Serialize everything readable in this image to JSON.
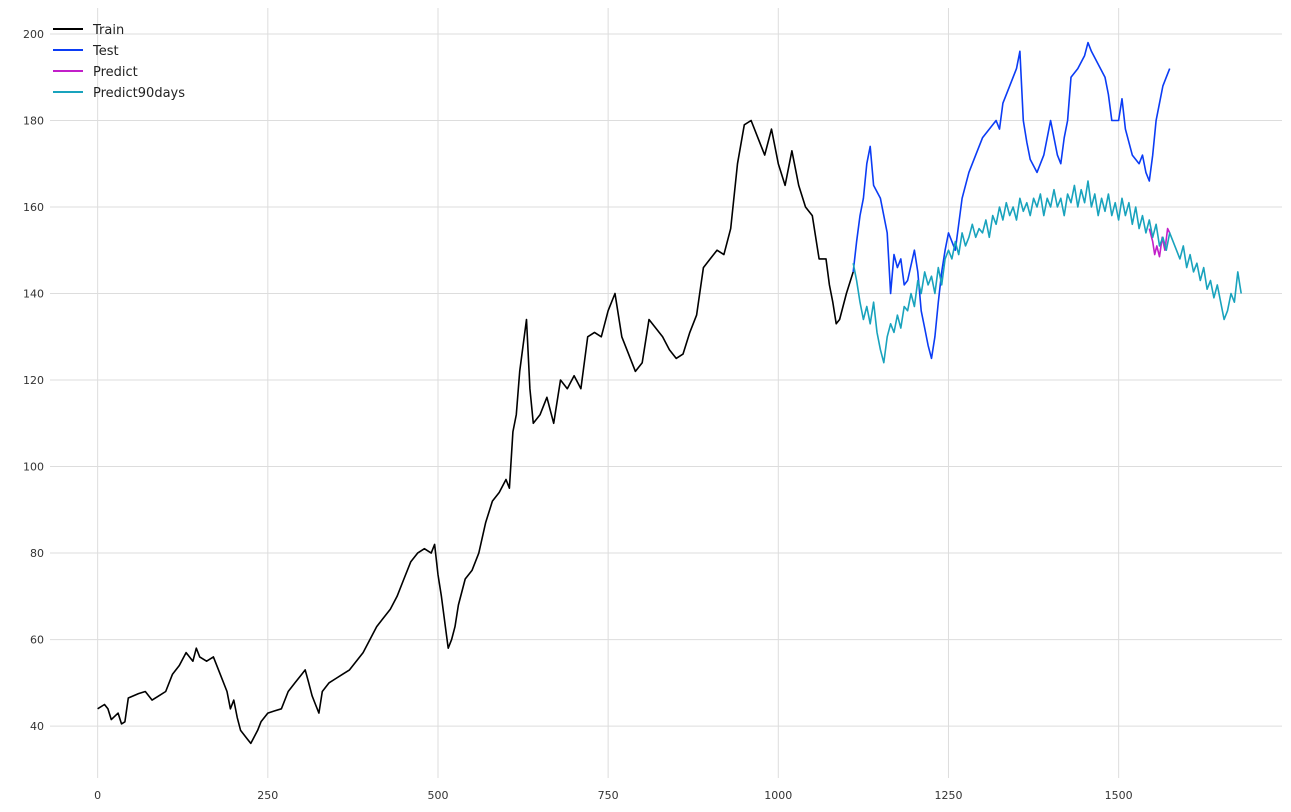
{
  "chart_data": {
    "type": "line",
    "xlim": [
      -70,
      1740
    ],
    "ylim": [
      28,
      206
    ],
    "x_ticks": [
      0,
      250,
      500,
      750,
      1000,
      1250,
      1500
    ],
    "y_ticks": [
      40,
      60,
      80,
      100,
      120,
      140,
      160,
      180,
      200
    ],
    "grid": true,
    "legend_position": "top-left",
    "series": [
      {
        "name": "Train",
        "color": "#000000",
        "points": [
          [
            0,
            44
          ],
          [
            10,
            45
          ],
          [
            15,
            44
          ],
          [
            20,
            41.5
          ],
          [
            30,
            43
          ],
          [
            35,
            40.5
          ],
          [
            40,
            41
          ],
          [
            45,
            46.5
          ],
          [
            60,
            47.5
          ],
          [
            70,
            48
          ],
          [
            80,
            46
          ],
          [
            90,
            47
          ],
          [
            100,
            48
          ],
          [
            110,
            52
          ],
          [
            120,
            54
          ],
          [
            130,
            57
          ],
          [
            140,
            55
          ],
          [
            145,
            58
          ],
          [
            150,
            56
          ],
          [
            160,
            55
          ],
          [
            170,
            56
          ],
          [
            180,
            52
          ],
          [
            190,
            48
          ],
          [
            195,
            44
          ],
          [
            200,
            46
          ],
          [
            205,
            42
          ],
          [
            210,
            39
          ],
          [
            215,
            38
          ],
          [
            220,
            37
          ],
          [
            225,
            36
          ],
          [
            235,
            39
          ],
          [
            240,
            41
          ],
          [
            250,
            43
          ],
          [
            260,
            43.5
          ],
          [
            270,
            44
          ],
          [
            280,
            48
          ],
          [
            290,
            50
          ],
          [
            300,
            52
          ],
          [
            305,
            53
          ],
          [
            310,
            50
          ],
          [
            315,
            47
          ],
          [
            320,
            45
          ],
          [
            325,
            43
          ],
          [
            330,
            48
          ],
          [
            340,
            50
          ],
          [
            350,
            51
          ],
          [
            360,
            52
          ],
          [
            370,
            53
          ],
          [
            380,
            55
          ],
          [
            390,
            57
          ],
          [
            400,
            60
          ],
          [
            410,
            63
          ],
          [
            420,
            65
          ],
          [
            430,
            67
          ],
          [
            440,
            70
          ],
          [
            450,
            74
          ],
          [
            460,
            78
          ],
          [
            470,
            80
          ],
          [
            480,
            81
          ],
          [
            490,
            80
          ],
          [
            495,
            82
          ],
          [
            500,
            75
          ],
          [
            505,
            70
          ],
          [
            510,
            64
          ],
          [
            515,
            58
          ],
          [
            520,
            60
          ],
          [
            525,
            63
          ],
          [
            530,
            68
          ],
          [
            540,
            74
          ],
          [
            550,
            76
          ],
          [
            560,
            80
          ],
          [
            570,
            87
          ],
          [
            580,
            92
          ],
          [
            590,
            94
          ],
          [
            600,
            97
          ],
          [
            605,
            95
          ],
          [
            610,
            108
          ],
          [
            615,
            112
          ],
          [
            620,
            122
          ],
          [
            625,
            128
          ],
          [
            630,
            134
          ],
          [
            635,
            118
          ],
          [
            640,
            110
          ],
          [
            650,
            112
          ],
          [
            660,
            116
          ],
          [
            670,
            110
          ],
          [
            680,
            120
          ],
          [
            690,
            118
          ],
          [
            700,
            121
          ],
          [
            710,
            118
          ],
          [
            720,
            130
          ],
          [
            730,
            131
          ],
          [
            740,
            130
          ],
          [
            750,
            136
          ],
          [
            760,
            140
          ],
          [
            770,
            130
          ],
          [
            780,
            126
          ],
          [
            790,
            122
          ],
          [
            800,
            124
          ],
          [
            810,
            134
          ],
          [
            820,
            132
          ],
          [
            830,
            130
          ],
          [
            840,
            127
          ],
          [
            850,
            125
          ],
          [
            860,
            126
          ],
          [
            870,
            131
          ],
          [
            880,
            135
          ],
          [
            890,
            146
          ],
          [
            900,
            148
          ],
          [
            910,
            150
          ],
          [
            920,
            149
          ],
          [
            930,
            155
          ],
          [
            940,
            170
          ],
          [
            950,
            179
          ],
          [
            960,
            180
          ],
          [
            970,
            176
          ],
          [
            980,
            172
          ],
          [
            990,
            178
          ],
          [
            1000,
            170
          ],
          [
            1010,
            165
          ],
          [
            1020,
            173
          ],
          [
            1030,
            165
          ],
          [
            1040,
            160
          ],
          [
            1050,
            158
          ],
          [
            1060,
            148
          ],
          [
            1070,
            148
          ],
          [
            1075,
            142
          ],
          [
            1080,
            138
          ],
          [
            1085,
            133
          ],
          [
            1090,
            134
          ],
          [
            1100,
            140
          ],
          [
            1110,
            145
          ]
        ]
      },
      {
        "name": "Test",
        "color": "#0b3cf5",
        "points": [
          [
            1110,
            145
          ],
          [
            1115,
            152
          ],
          [
            1120,
            158
          ],
          [
            1125,
            162
          ],
          [
            1130,
            170
          ],
          [
            1135,
            174
          ],
          [
            1140,
            165
          ],
          [
            1150,
            162
          ],
          [
            1160,
            154
          ],
          [
            1165,
            140
          ],
          [
            1170,
            149
          ],
          [
            1175,
            146
          ],
          [
            1180,
            148
          ],
          [
            1185,
            142
          ],
          [
            1190,
            143
          ],
          [
            1200,
            150
          ],
          [
            1205,
            145
          ],
          [
            1210,
            136
          ],
          [
            1215,
            132
          ],
          [
            1220,
            128
          ],
          [
            1225,
            125
          ],
          [
            1230,
            130
          ],
          [
            1235,
            138
          ],
          [
            1240,
            145
          ],
          [
            1245,
            150
          ],
          [
            1250,
            154
          ],
          [
            1260,
            150
          ],
          [
            1270,
            162
          ],
          [
            1280,
            168
          ],
          [
            1290,
            172
          ],
          [
            1300,
            176
          ],
          [
            1310,
            178
          ],
          [
            1320,
            180
          ],
          [
            1325,
            178
          ],
          [
            1330,
            184
          ],
          [
            1340,
            188
          ],
          [
            1350,
            192
          ],
          [
            1355,
            196
          ],
          [
            1360,
            180
          ],
          [
            1365,
            175
          ],
          [
            1370,
            171
          ],
          [
            1380,
            168
          ],
          [
            1390,
            172
          ],
          [
            1400,
            180
          ],
          [
            1410,
            172
          ],
          [
            1415,
            170
          ],
          [
            1420,
            176
          ],
          [
            1425,
            180
          ],
          [
            1430,
            190
          ],
          [
            1440,
            192
          ],
          [
            1450,
            195
          ],
          [
            1455,
            198
          ],
          [
            1460,
            196
          ],
          [
            1470,
            193
          ],
          [
            1480,
            190
          ],
          [
            1485,
            186
          ],
          [
            1490,
            180
          ],
          [
            1500,
            180
          ],
          [
            1505,
            185
          ],
          [
            1510,
            178
          ],
          [
            1520,
            172
          ],
          [
            1530,
            170
          ],
          [
            1535,
            172
          ],
          [
            1540,
            168
          ],
          [
            1545,
            166
          ],
          [
            1550,
            172
          ],
          [
            1555,
            180
          ],
          [
            1560,
            184
          ],
          [
            1565,
            188
          ],
          [
            1570,
            190
          ],
          [
            1575,
            192
          ]
        ]
      },
      {
        "name": "Predict",
        "color": "#c21fc9",
        "points": [
          [
            1545,
            155
          ],
          [
            1550,
            152
          ],
          [
            1553,
            149
          ],
          [
            1556,
            151
          ],
          [
            1560,
            148.5
          ],
          [
            1564,
            153
          ],
          [
            1568,
            150
          ],
          [
            1572,
            155
          ],
          [
            1575,
            154
          ]
        ]
      },
      {
        "name": "Predict90days",
        "color": "#19a3bd",
        "points": [
          [
            1110,
            147
          ],
          [
            1115,
            143
          ],
          [
            1120,
            138
          ],
          [
            1125,
            134
          ],
          [
            1130,
            137
          ],
          [
            1135,
            133
          ],
          [
            1140,
            138
          ],
          [
            1145,
            131
          ],
          [
            1150,
            127
          ],
          [
            1155,
            124
          ],
          [
            1160,
            130
          ],
          [
            1165,
            133
          ],
          [
            1170,
            131
          ],
          [
            1175,
            135
          ],
          [
            1180,
            132
          ],
          [
            1185,
            137
          ],
          [
            1190,
            136
          ],
          [
            1195,
            140
          ],
          [
            1200,
            137
          ],
          [
            1205,
            143
          ],
          [
            1210,
            140
          ],
          [
            1215,
            145
          ],
          [
            1220,
            142
          ],
          [
            1225,
            144
          ],
          [
            1230,
            140
          ],
          [
            1235,
            146
          ],
          [
            1240,
            142
          ],
          [
            1245,
            148
          ],
          [
            1250,
            150
          ],
          [
            1255,
            148
          ],
          [
            1260,
            152
          ],
          [
            1265,
            149
          ],
          [
            1270,
            154
          ],
          [
            1275,
            151
          ],
          [
            1280,
            153
          ],
          [
            1285,
            156
          ],
          [
            1290,
            153
          ],
          [
            1295,
            155
          ],
          [
            1300,
            154
          ],
          [
            1305,
            157
          ],
          [
            1310,
            153
          ],
          [
            1315,
            158
          ],
          [
            1320,
            156
          ],
          [
            1325,
            160
          ],
          [
            1330,
            157
          ],
          [
            1335,
            161
          ],
          [
            1340,
            158
          ],
          [
            1345,
            160
          ],
          [
            1350,
            157
          ],
          [
            1355,
            162
          ],
          [
            1360,
            159
          ],
          [
            1365,
            161
          ],
          [
            1370,
            158
          ],
          [
            1375,
            162
          ],
          [
            1380,
            160
          ],
          [
            1385,
            163
          ],
          [
            1390,
            158
          ],
          [
            1395,
            162
          ],
          [
            1400,
            160
          ],
          [
            1405,
            164
          ],
          [
            1410,
            160
          ],
          [
            1415,
            162
          ],
          [
            1420,
            158
          ],
          [
            1425,
            163
          ],
          [
            1430,
            161
          ],
          [
            1435,
            165
          ],
          [
            1440,
            160
          ],
          [
            1445,
            164
          ],
          [
            1450,
            161
          ],
          [
            1455,
            166
          ],
          [
            1460,
            160
          ],
          [
            1465,
            163
          ],
          [
            1470,
            158
          ],
          [
            1475,
            162
          ],
          [
            1480,
            159
          ],
          [
            1485,
            163
          ],
          [
            1490,
            158
          ],
          [
            1495,
            161
          ],
          [
            1500,
            157
          ],
          [
            1505,
            162
          ],
          [
            1510,
            158
          ],
          [
            1515,
            161
          ],
          [
            1520,
            156
          ],
          [
            1525,
            160
          ],
          [
            1530,
            155
          ],
          [
            1535,
            158
          ],
          [
            1540,
            154
          ],
          [
            1545,
            157
          ],
          [
            1550,
            153
          ],
          [
            1555,
            156
          ],
          [
            1560,
            151
          ],
          [
            1565,
            153
          ],
          [
            1570,
            150
          ],
          [
            1575,
            154
          ],
          [
            1580,
            152
          ],
          [
            1585,
            150
          ],
          [
            1590,
            148
          ],
          [
            1595,
            151
          ],
          [
            1600,
            146
          ],
          [
            1605,
            149
          ],
          [
            1610,
            145
          ],
          [
            1615,
            147
          ],
          [
            1620,
            143
          ],
          [
            1625,
            146
          ],
          [
            1630,
            141
          ],
          [
            1635,
            143
          ],
          [
            1640,
            139
          ],
          [
            1645,
            142
          ],
          [
            1650,
            138
          ],
          [
            1655,
            134
          ],
          [
            1660,
            136
          ],
          [
            1665,
            140
          ],
          [
            1670,
            138
          ],
          [
            1675,
            145
          ],
          [
            1678,
            142
          ],
          [
            1680,
            140
          ]
        ]
      }
    ]
  }
}
